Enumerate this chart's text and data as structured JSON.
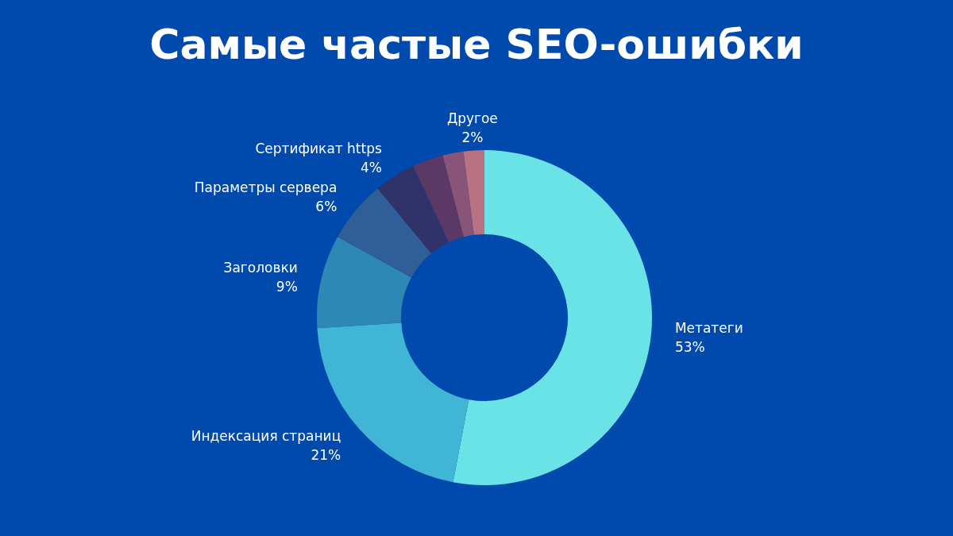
{
  "chart_data": {
    "type": "donut",
    "title": "Самые частые SEO-ошибки",
    "categories": [
      "Метатеги",
      "Индексация страниц",
      "Заголовки",
      "Параметры сервера",
      "Сертификат https",
      null,
      null,
      "Другое"
    ],
    "values": [
      53,
      21,
      9,
      6,
      4,
      3,
      2,
      2
    ],
    "value_labels": [
      "53%",
      "21%",
      "9%",
      "6%",
      "4%",
      null,
      null,
      "2%"
    ],
    "colors": [
      "#6ae3e6",
      "#41b5d6",
      "#2e88b5",
      "#2f5f96",
      "#2f336a",
      "#5c3866",
      "#8a5478",
      "#b87283"
    ],
    "legend": false
  }
}
